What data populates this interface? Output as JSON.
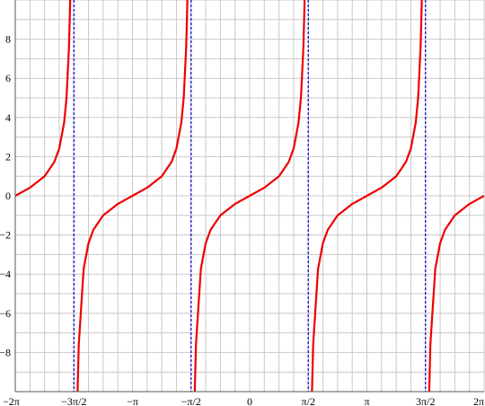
{
  "chart_data": {
    "type": "line",
    "title": "",
    "xlabel": "",
    "ylabel": "",
    "function": "tan(x)",
    "xlim": [
      -6.2832,
      6.2832
    ],
    "ylim": [
      -10,
      10
    ],
    "grid": true,
    "x_minor_step": 0.3927,
    "y_minor_step": 1,
    "x_ticks": [
      {
        "value": -6.2832,
        "label": "−2π"
      },
      {
        "value": -4.7124,
        "label": "−3π/2"
      },
      {
        "value": -3.1416,
        "label": "−π"
      },
      {
        "value": -1.5708,
        "label": "−π/2"
      },
      {
        "value": 0,
        "label": "0"
      },
      {
        "value": 1.5708,
        "label": "π/2"
      },
      {
        "value": 3.1416,
        "label": "π"
      },
      {
        "value": 4.7124,
        "label": "3π/2"
      },
      {
        "value": 6.2832,
        "label": "2π"
      }
    ],
    "y_ticks": [
      {
        "value": 8,
        "label": "8"
      },
      {
        "value": 6,
        "label": "6"
      },
      {
        "value": 4,
        "label": "4"
      },
      {
        "value": 2,
        "label": "2"
      },
      {
        "value": 0,
        "label": "0"
      },
      {
        "value": -2,
        "label": "−2"
      },
      {
        "value": -4,
        "label": "−4"
      },
      {
        "value": -6,
        "label": "−6"
      },
      {
        "value": -8,
        "label": "−8"
      }
    ],
    "asymptotes": [
      -4.7124,
      -1.5708,
      1.5708,
      4.7124
    ],
    "series": [
      {
        "color": "#ee0000",
        "branches": [
          [
            [
              -6.2832,
              0
            ],
            [
              -5.8905,
              0.414
            ],
            [
              -5.4978,
              1
            ],
            [
              -5.236,
              1.732
            ],
            [
              -5.1051,
              2.414
            ],
            [
              -4.9742,
              3.732
            ],
            [
              -4.9087,
              5.027
            ],
            [
              -4.8433,
              7.596
            ],
            [
              -4.8171,
              9.514
            ],
            [
              -4.812,
              10
            ]
          ],
          [
            [
              -4.6128,
              -10
            ],
            [
              -4.5815,
              -7.596
            ],
            [
              -4.4506,
              -3.732
            ],
            [
              -4.3197,
              -2.414
            ],
            [
              -4.1888,
              -1.732
            ],
            [
              -3.927,
              -1
            ],
            [
              -3.5343,
              -0.414
            ],
            [
              -3.1416,
              0
            ],
            [
              -2.7489,
              0.414
            ],
            [
              -2.3562,
              1
            ],
            [
              -2.0944,
              1.732
            ],
            [
              -1.9635,
              2.414
            ],
            [
              -1.8326,
              3.732
            ],
            [
              -1.7671,
              5.027
            ],
            [
              -1.7017,
              7.596
            ],
            [
              -1.6755,
              9.514
            ],
            [
              -1.6704,
              10
            ]
          ],
          [
            [
              -1.4712,
              -10
            ],
            [
              -1.4399,
              -7.596
            ],
            [
              -1.309,
              -3.732
            ],
            [
              -1.1781,
              -2.414
            ],
            [
              -1.0472,
              -1.732
            ],
            [
              -0.7854,
              -1
            ],
            [
              -0.3927,
              -0.414
            ],
            [
              0,
              0
            ],
            [
              0.3927,
              0.414
            ],
            [
              0.7854,
              1
            ],
            [
              1.0472,
              1.732
            ],
            [
              1.1781,
              2.414
            ],
            [
              1.309,
              3.732
            ],
            [
              1.3745,
              5.027
            ],
            [
              1.4399,
              7.596
            ],
            [
              1.4661,
              9.514
            ],
            [
              1.4712,
              10
            ]
          ],
          [
            [
              1.6704,
              -10
            ],
            [
              1.7017,
              -7.596
            ],
            [
              1.8326,
              -3.732
            ],
            [
              1.9635,
              -2.414
            ],
            [
              2.0944,
              -1.732
            ],
            [
              2.3562,
              -1
            ],
            [
              2.7489,
              -0.414
            ],
            [
              3.1416,
              0
            ],
            [
              3.5343,
              0.414
            ],
            [
              3.927,
              1
            ],
            [
              4.1888,
              1.732
            ],
            [
              4.3197,
              2.414
            ],
            [
              4.4506,
              3.732
            ],
            [
              4.516,
              5.027
            ],
            [
              4.5815,
              7.596
            ],
            [
              4.6077,
              9.514
            ],
            [
              4.6128,
              10
            ]
          ],
          [
            [
              4.812,
              -10
            ],
            [
              4.8433,
              -7.596
            ],
            [
              4.9742,
              -3.732
            ],
            [
              5.1051,
              -2.414
            ],
            [
              5.236,
              -1.732
            ],
            [
              5.4978,
              -1
            ],
            [
              5.8905,
              -0.414
            ],
            [
              6.2832,
              0
            ]
          ]
        ]
      }
    ]
  }
}
